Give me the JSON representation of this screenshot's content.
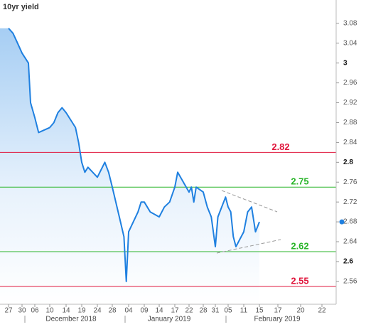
{
  "chart_data": {
    "type": "line",
    "title": "10yr yield",
    "x": [
      "2018-11-27",
      "2018-11-28",
      "2018-11-29",
      "2018-11-30",
      "2018-12-03",
      "2018-12-04",
      "2018-12-06",
      "2018-12-07",
      "2018-12-10",
      "2018-12-11",
      "2018-12-12",
      "2018-12-13",
      "2018-12-14",
      "2018-12-17",
      "2018-12-18",
      "2018-12-19",
      "2018-12-20",
      "2018-12-21",
      "2018-12-24",
      "2018-12-26",
      "2018-12-27",
      "2018-12-28",
      "2018-12-31",
      "2019-01-02",
      "2019-01-03",
      "2019-01-04",
      "2019-01-07",
      "2019-01-08",
      "2019-01-09",
      "2019-01-10",
      "2019-01-11",
      "2019-01-14",
      "2019-01-15",
      "2019-01-16",
      "2019-01-17",
      "2019-01-18",
      "2019-01-22",
      "2019-01-23",
      "2019-01-24",
      "2019-01-25",
      "2019-01-28",
      "2019-01-29",
      "2019-01-30",
      "2019-01-31",
      "2019-02-01",
      "2019-02-04",
      "2019-02-05",
      "2019-02-06",
      "2019-02-07",
      "2019-02-08",
      "2019-02-11",
      "2019-02-12",
      "2019-02-13",
      "2019-02-14",
      "2019-02-15"
    ],
    "series": [
      {
        "name": "10yr yield",
        "color": "#1f80e0",
        "values": [
          3.07,
          3.06,
          3.04,
          3.02,
          3.0,
          2.92,
          2.89,
          2.86,
          2.87,
          2.88,
          2.9,
          2.91,
          2.9,
          2.87,
          2.84,
          2.8,
          2.78,
          2.79,
          2.77,
          2.8,
          2.78,
          2.75,
          2.69,
          2.65,
          2.56,
          2.66,
          2.7,
          2.72,
          2.72,
          2.71,
          2.7,
          2.69,
          2.71,
          2.72,
          2.75,
          2.78,
          2.74,
          2.75,
          2.72,
          2.75,
          2.74,
          2.71,
          2.69,
          2.63,
          2.69,
          2.73,
          2.71,
          2.7,
          2.65,
          2.63,
          2.66,
          2.7,
          2.71,
          2.66,
          2.68
        ]
      }
    ],
    "xticks": [
      {
        "value": "2018-11-27",
        "label": "27"
      },
      {
        "value": "2018-11-30",
        "label": "30"
      },
      {
        "value": "2018-12-06",
        "label": "06"
      },
      {
        "value": "2018-12-10",
        "label": "10"
      },
      {
        "value": "2018-12-14",
        "label": "14"
      },
      {
        "value": "2018-12-19",
        "label": "19"
      },
      {
        "value": "2018-12-24",
        "label": "24"
      },
      {
        "value": "2018-12-28",
        "label": "28"
      },
      {
        "value": "2019-01-04",
        "label": "04"
      },
      {
        "value": "2019-01-09",
        "label": "09"
      },
      {
        "value": "2019-01-14",
        "label": "14"
      },
      {
        "value": "2019-01-17",
        "label": "17"
      },
      {
        "value": "2019-01-22",
        "label": "22"
      },
      {
        "value": "2019-01-28",
        "label": "28"
      },
      {
        "value": "2019-01-31",
        "label": "31"
      },
      {
        "value": "2019-02-05",
        "label": "05"
      },
      {
        "value": "2019-02-11",
        "label": "11"
      },
      {
        "value": "2019-02-15",
        "label": "15"
      },
      {
        "value": "2019-02-17",
        "label": "17"
      },
      {
        "value": "2019-02-20",
        "label": "20"
      },
      {
        "value": "2019-02-22",
        "label": "22"
      }
    ],
    "month_labels": [
      "December 2018",
      "January 2019",
      "February 2019"
    ],
    "ylim": [
      2.514,
      3.127
    ],
    "yticks": [
      2.56,
      2.6,
      2.64,
      2.68,
      2.72,
      2.76,
      2.8,
      2.84,
      2.88,
      2.92,
      2.96,
      3,
      3.04,
      3.08
    ],
    "levels": [
      {
        "value": 2.82,
        "color": "#e0163c"
      },
      {
        "value": 2.75,
        "color": "#2ab52a"
      },
      {
        "value": 2.62,
        "color": "#2ab52a"
      },
      {
        "value": 2.55,
        "color": "#e0163c"
      }
    ]
  }
}
